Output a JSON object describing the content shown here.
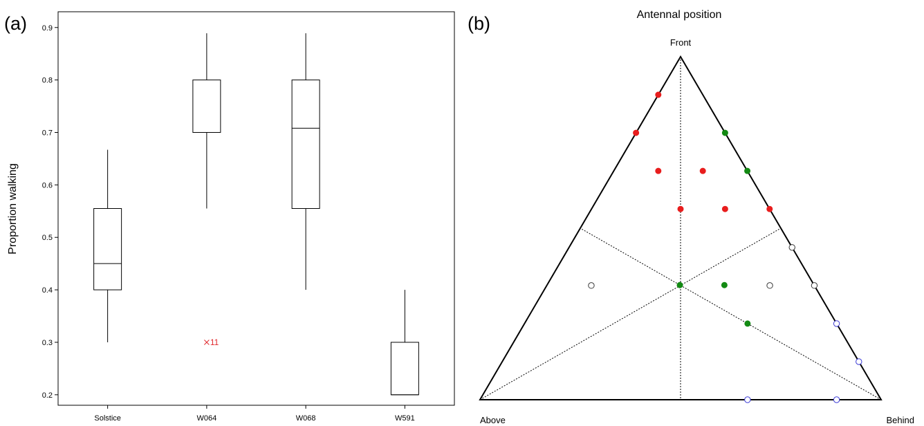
{
  "chart_data": [
    {
      "type": "box",
      "panel_label": "(a)",
      "title": "",
      "xlabel": "",
      "ylabel": "Proportion walking",
      "ylim": [
        0.18,
        0.93
      ],
      "yticks": [
        "0.2",
        "0.3",
        "0.4",
        "0.5",
        "0.6",
        "0.7",
        "0.8",
        "0.9"
      ],
      "categories": [
        "Solstice",
        "W064",
        "W068",
        "W591"
      ],
      "boxes": [
        {
          "category": "Solstice",
          "whisker_low": 0.3,
          "q1": 0.4,
          "median": 0.45,
          "q3": 0.555,
          "whisker_high": 0.667
        },
        {
          "category": "W064",
          "whisker_low": 0.555,
          "q1": 0.7,
          "median": 0.7,
          "q3": 0.8,
          "whisker_high": 0.889
        },
        {
          "category": "W068",
          "whisker_low": 0.4,
          "q1": 0.555,
          "median": 0.708,
          "q3": 0.8,
          "whisker_high": 0.889
        },
        {
          "category": "W591",
          "whisker_low": 0.2,
          "q1": 0.2,
          "median": 0.2,
          "q3": 0.3,
          "whisker_high": 0.4
        }
      ],
      "outliers": [
        {
          "category": "W064",
          "value": 0.3,
          "label": "11",
          "color": "#e0262b"
        }
      ],
      "grid": false
    },
    {
      "type": "scatter",
      "subtype": "ternary",
      "panel_label": "(b)",
      "title": "Antennal position",
      "corners": {
        "top": "Front",
        "left": "Above",
        "right": "Behind"
      },
      "grid": false,
      "points_units": "fractions of Front, Above, Behind",
      "series": [
        {
          "color": "#e81d1d",
          "filled": true,
          "points": [
            {
              "front": 0.889,
              "above": 0.111,
              "behind": 0.0
            },
            {
              "front": 0.778,
              "above": 0.222,
              "behind": 0.0
            },
            {
              "front": 0.667,
              "above": 0.222,
              "behind": 0.111
            },
            {
              "front": 0.667,
              "above": 0.111,
              "behind": 0.222
            },
            {
              "front": 0.556,
              "above": 0.222,
              "behind": 0.222
            },
            {
              "front": 0.556,
              "above": 0.111,
              "behind": 0.333
            },
            {
              "front": 0.556,
              "above": 0.0,
              "behind": 0.444
            },
            {
              "front": 0.222,
              "above": 0.0,
              "behind": 0.778
            }
          ]
        },
        {
          "color": "#138a13",
          "filled": true,
          "points": [
            {
              "front": 0.778,
              "above": 0.0,
              "behind": 0.222
            },
            {
              "front": 0.667,
              "above": 0.0,
              "behind": 0.333
            },
            {
              "front": 0.333,
              "above": 0.333,
              "behind": 0.333
            },
            {
              "front": 0.333,
              "above": 0.222,
              "behind": 0.444
            },
            {
              "front": 0.222,
              "above": 0.222,
              "behind": 0.556
            }
          ]
        },
        {
          "color": "#333333",
          "filled": false,
          "points": [
            {
              "front": 0.444,
              "above": 0.0,
              "behind": 0.556
            },
            {
              "front": 0.333,
              "above": 0.556,
              "behind": 0.111
            },
            {
              "front": 0.333,
              "above": 0.111,
              "behind": 0.556
            },
            {
              "front": 0.333,
              "above": 0.0,
              "behind": 0.667
            }
          ]
        },
        {
          "color": "#3b3bd6",
          "filled": false,
          "points": [
            {
              "front": 0.222,
              "above": 0.0,
              "behind": 0.778
            },
            {
              "front": 0.111,
              "above": 0.0,
              "behind": 0.889
            },
            {
              "front": 0.0,
              "above": 0.333,
              "behind": 0.667
            },
            {
              "front": 0.0,
              "above": 0.111,
              "behind": 0.889
            }
          ]
        }
      ]
    }
  ]
}
